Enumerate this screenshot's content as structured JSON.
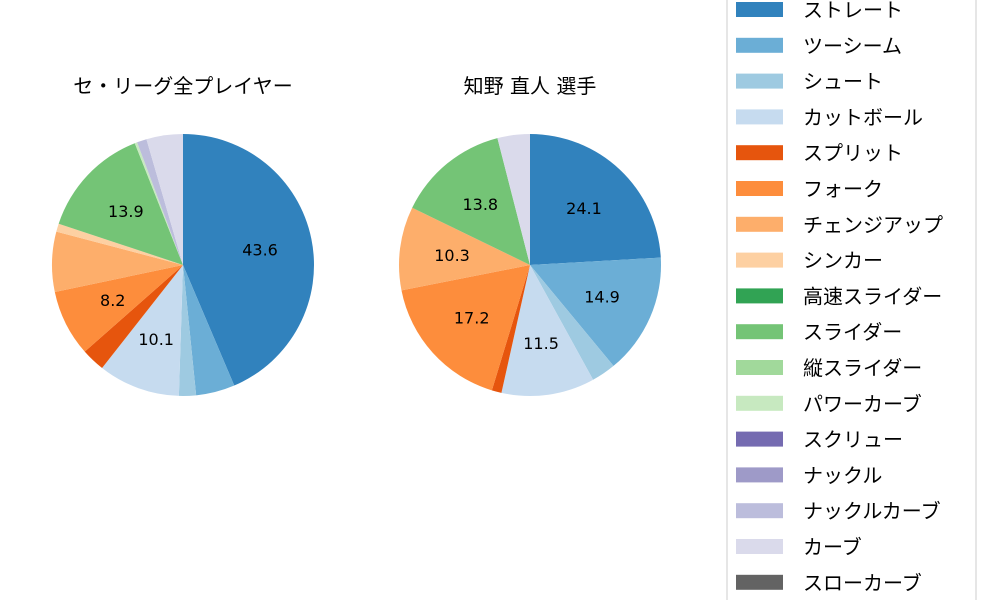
{
  "chart_data": [
    {
      "type": "pie",
      "title": "セ・リーグ全プレイヤー",
      "start_angle": "top, clockwise",
      "slices": [
        {
          "label": "ストレート",
          "value": 43.6,
          "data_label": "43.6"
        },
        {
          "label": "ツーシーム",
          "value": 4.8
        },
        {
          "label": "シュート",
          "value": 2.1
        },
        {
          "label": "カットボール",
          "value": 10.1,
          "data_label": "10.1"
        },
        {
          "label": "スプリット",
          "value": 2.9
        },
        {
          "label": "フォーク",
          "value": 8.2,
          "data_label": "8.2"
        },
        {
          "label": "チェンジアップ",
          "value": 7.4
        },
        {
          "label": "シンカー",
          "value": 1.0
        },
        {
          "label": "高速スライダー",
          "value": 0.0
        },
        {
          "label": "スライダー",
          "value": 13.9,
          "data_label": "13.9"
        },
        {
          "label": "縦スライダー",
          "value": 0.0
        },
        {
          "label": "パワーカーブ",
          "value": 0.3
        },
        {
          "label": "スクリュー",
          "value": 0.0
        },
        {
          "label": "ナックル",
          "value": 0.0
        },
        {
          "label": "ナックルカーブ",
          "value": 1.2
        },
        {
          "label": "カーブ",
          "value": 4.5
        },
        {
          "label": "スローカーブ",
          "value": 0.0
        }
      ]
    },
    {
      "type": "pie",
      "title": "知野 直人  選手",
      "start_angle": "top, clockwise",
      "slices": [
        {
          "label": "ストレート",
          "value": 24.1,
          "data_label": "24.1"
        },
        {
          "label": "ツーシーム",
          "value": 14.9,
          "data_label": "14.9"
        },
        {
          "label": "シュート",
          "value": 3.0
        },
        {
          "label": "カットボール",
          "value": 11.5,
          "data_label": "11.5"
        },
        {
          "label": "スプリット",
          "value": 1.2
        },
        {
          "label": "フォーク",
          "value": 17.2,
          "data_label": "17.2"
        },
        {
          "label": "チェンジアップ",
          "value": 10.3,
          "data_label": "10.3"
        },
        {
          "label": "シンカー",
          "value": 0.0
        },
        {
          "label": "高速スライダー",
          "value": 0.0
        },
        {
          "label": "スライダー",
          "value": 13.8,
          "data_label": "13.8"
        },
        {
          "label": "縦スライダー",
          "value": 0.0
        },
        {
          "label": "パワーカーブ",
          "value": 0.0
        },
        {
          "label": "スクリュー",
          "value": 0.0
        },
        {
          "label": "ナックル",
          "value": 0.0
        },
        {
          "label": "ナックルカーブ",
          "value": 0.0
        },
        {
          "label": "カーブ",
          "value": 4.0
        },
        {
          "label": "スローカーブ",
          "value": 0.0
        }
      ]
    }
  ],
  "legend": {
    "placement": "right",
    "items": [
      {
        "label": "ストレート",
        "color": "#3182bd"
      },
      {
        "label": "ツーシーム",
        "color": "#6baed6"
      },
      {
        "label": "シュート",
        "color": "#9ecae1"
      },
      {
        "label": "カットボール",
        "color": "#c6dbef"
      },
      {
        "label": "スプリット",
        "color": "#e6550d"
      },
      {
        "label": "フォーク",
        "color": "#fd8d3c"
      },
      {
        "label": "チェンジアップ",
        "color": "#fdae6b"
      },
      {
        "label": "シンカー",
        "color": "#fdd0a2"
      },
      {
        "label": "高速スライダー",
        "color": "#31a354"
      },
      {
        "label": "スライダー",
        "color": "#74c476"
      },
      {
        "label": "縦スライダー",
        "color": "#a1d99b"
      },
      {
        "label": "パワーカーブ",
        "color": "#c7e9c0"
      },
      {
        "label": "スクリュー",
        "color": "#756bb1"
      },
      {
        "label": "ナックル",
        "color": "#9e9ac8"
      },
      {
        "label": "ナックルカーブ",
        "color": "#bcbddc"
      },
      {
        "label": "カーブ",
        "color": "#dadaeb"
      },
      {
        "label": "スローカーブ",
        "color": "#636363"
      }
    ]
  }
}
